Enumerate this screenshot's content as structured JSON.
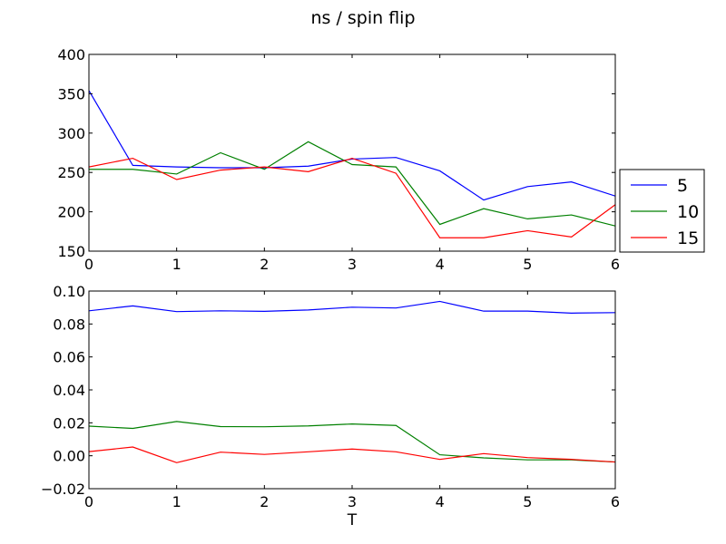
{
  "chart_data": {
    "title": "ns / spin flip",
    "colors": {
      "5": "#0000ff",
      "10": "#008000",
      "15": "#ff0000"
    },
    "legend": {
      "entries": [
        "5",
        "10",
        "15"
      ],
      "placement": "outside-right, beside top panel"
    },
    "panels": [
      {
        "type": "line",
        "xlim": [
          0,
          6
        ],
        "ylim": [
          150,
          400
        ],
        "xticks": [
          0,
          1,
          2,
          3,
          4,
          5,
          6
        ],
        "yticks": [
          150,
          200,
          250,
          300,
          350,
          400
        ],
        "xlabel": "",
        "x": [
          0,
          0.5,
          1,
          1.5,
          2,
          2.5,
          3,
          3.5,
          4,
          4.5,
          5,
          5.5,
          6
        ],
        "series": [
          {
            "name": "5",
            "color": "#0000ff",
            "values": [
              354,
              259,
              257,
              256,
              256,
              258,
              267,
              269,
              252,
              215,
              232,
              238,
              220
            ]
          },
          {
            "name": "10",
            "color": "#008000",
            "values": [
              254,
              254,
              248,
              275,
              254,
              289,
              260,
              257,
              184,
              204,
              191,
              196,
              182
            ]
          },
          {
            "name": "15",
            "color": "#ff0000",
            "values": [
              257,
              268,
              241,
              253,
              257,
              251,
              268,
              249,
              167,
              167,
              176,
              168,
              209
            ]
          }
        ]
      },
      {
        "type": "line",
        "xlim": [
          0,
          6
        ],
        "ylim": [
          -0.02,
          0.1
        ],
        "xticks": [
          0,
          1,
          2,
          3,
          4,
          5,
          6
        ],
        "yticks": [
          -0.02,
          0.0,
          0.02,
          0.04,
          0.06,
          0.08,
          0.1
        ],
        "ytick_labels": [
          "−0.02",
          "0.00",
          "0.02",
          "0.04",
          "0.06",
          "0.08",
          "0.10"
        ],
        "xlabel": "T",
        "x": [
          0,
          0.5,
          1,
          1.5,
          2,
          2.5,
          3,
          3.5,
          4,
          4.5,
          5,
          5.5,
          6
        ],
        "series": [
          {
            "name": "5",
            "color": "#0000ff",
            "values": [
              0.088,
              0.091,
              0.0875,
              0.088,
              0.0877,
              0.0885,
              0.0902,
              0.0897,
              0.0937,
              0.0878,
              0.0878,
              0.0866,
              0.0869
            ]
          },
          {
            "name": "10",
            "color": "#008000",
            "values": [
              0.018,
              0.0166,
              0.0208,
              0.0177,
              0.0176,
              0.0181,
              0.0193,
              0.0184,
              0.0006,
              -0.0013,
              -0.0025,
              -0.0025,
              -0.0038
            ]
          },
          {
            "name": "15",
            "color": "#ff0000",
            "values": [
              0.0025,
              0.0053,
              -0.0042,
              0.0022,
              0.0008,
              0.0024,
              0.0041,
              0.0024,
              -0.0022,
              0.0013,
              -0.0011,
              -0.0022,
              -0.0038
            ]
          }
        ]
      }
    ]
  }
}
